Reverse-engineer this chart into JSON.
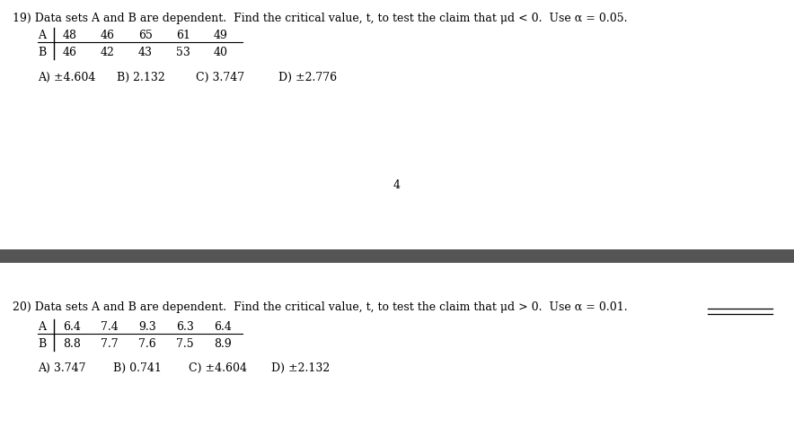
{
  "bg_color": "#ffffff",
  "divider_color": "#555555",
  "q19": {
    "question": "19) Data sets A and B are dependent.  Find the critical value, t, to test the claim that μd < 0.  Use α = 0.05.",
    "row_A_label": "A",
    "row_B_label": "B",
    "row_A_values": [
      "48",
      "46",
      "65",
      "61",
      "49"
    ],
    "row_B_values": [
      "46",
      "42",
      "43",
      "53",
      "40"
    ],
    "answers": [
      "A) ±4.604",
      "B) 2.132",
      "C) 3.747",
      "D) ±2.776"
    ],
    "page_number": "4"
  },
  "q20": {
    "question": "20) Data sets A and B are dependent.  Find the critical value, t, to test the claim that μd > 0.  Use α = 0.01.",
    "row_A_label": "A",
    "row_B_label": "B",
    "row_A_values": [
      "6.4",
      "7.4",
      "9.3",
      "6.3",
      "6.4"
    ],
    "row_B_values": [
      "8.8",
      "7.7",
      "7.6",
      "7.5",
      "8.9"
    ],
    "answers": [
      "A) 3.747",
      "B) 0.741",
      "C) ±4.604",
      "D) ±2.132"
    ]
  },
  "font_size_question": 9.0,
  "font_size_table": 9.0,
  "font_size_answers": 9.0,
  "text_color": "#000000",
  "table_line_color": "#000000"
}
